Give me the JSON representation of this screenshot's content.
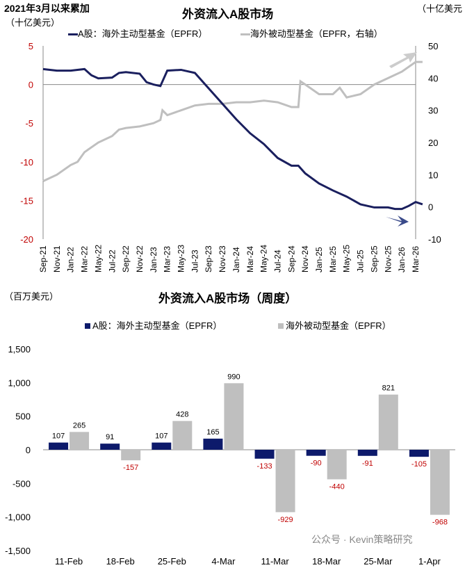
{
  "chart_data": [
    {
      "type": "line",
      "title": "外资流入A股市场",
      "note": "2021年3月以来累加",
      "ylabel": "（十亿美元）",
      "y2label": "（十亿美元",
      "ylim": [
        -20,
        5
      ],
      "y2lim": [
        -10,
        50
      ],
      "yticks": [
        "5",
        "0",
        "-5",
        "-10",
        "-15",
        "-20"
      ],
      "y2ticks": [
        "50",
        "40",
        "30",
        "20",
        "10",
        "0",
        "-10"
      ],
      "xticks": [
        "Sep-21",
        "Nov-21",
        "Jan-22",
        "Mar-22",
        "May-22",
        "Jul-22",
        "Sep-22",
        "Nov-22",
        "Jan-23",
        "Mar-23",
        "May-23",
        "Jul-23",
        "Sep-23",
        "Nov-23",
        "Jan-24",
        "Mar-24",
        "May-24",
        "Jul-24",
        "Sep-24",
        "Nov-24",
        "Jan-25",
        "Mar-25",
        "May-25",
        "Jul-25",
        "Sep-25",
        "Nov-25",
        "Jan-26",
        "Mar-26"
      ],
      "series": [
        {
          "name": "A股：海外主动型基金（EPFR）",
          "axis": "left",
          "color": "#1a1f5e",
          "x": [
            0,
            2,
            4,
            6,
            7,
            8,
            10,
            11,
            12,
            14,
            15,
            16,
            17,
            18,
            20,
            22,
            24,
            26,
            28,
            30,
            32,
            34,
            36,
            37,
            38,
            40,
            42,
            44,
            46,
            48,
            50,
            51,
            52,
            53,
            54,
            55
          ],
          "values": [
            2.0,
            1.8,
            1.8,
            2.0,
            1.2,
            0.8,
            0.9,
            1.5,
            1.6,
            1.4,
            0.3,
            0,
            -0.2,
            1.8,
            1.9,
            1.5,
            -0.5,
            -2.5,
            -4.5,
            -6.3,
            -7.7,
            -9.5,
            -10.5,
            -10.5,
            -11.5,
            -12.8,
            -13.7,
            -14.5,
            -15.5,
            -15.9,
            -15.9,
            -16.1,
            -16.1,
            -15.7,
            -15.2,
            -15.5
          ]
        },
        {
          "name": "海外被动型基金（EPFR，右轴）",
          "axis": "right",
          "color": "#bfbfbf",
          "x": [
            0,
            2,
            4,
            5,
            6,
            8,
            10,
            11,
            12,
            14,
            16,
            17,
            17.3,
            18,
            20,
            22,
            24,
            26,
            28,
            30,
            32,
            34,
            36,
            37,
            37.3,
            38,
            40,
            42,
            43,
            44,
            46,
            48,
            50,
            52,
            54,
            55
          ],
          "values": [
            8,
            10,
            13,
            14,
            17,
            20,
            22,
            24,
            24.5,
            25,
            26,
            27,
            30,
            28.5,
            30,
            31.5,
            32,
            32,
            32.5,
            32.5,
            33,
            32.5,
            31,
            31,
            39,
            38,
            35,
            35,
            37,
            34,
            35,
            38,
            40,
            42,
            45,
            45
          ]
        }
      ]
    },
    {
      "type": "bar",
      "title": "外资流入A股市场（周度）",
      "ylabel": "（百万美元）",
      "ylim": [
        -1500,
        1500
      ],
      "yticks": [
        "1,500",
        "1,000",
        "500",
        "0",
        "-500",
        "-1,000",
        "-1,500"
      ],
      "categories": [
        "11-Feb",
        "18-Feb",
        "25-Feb",
        "4-Mar",
        "11-Mar",
        "18-Mar",
        "25-Mar",
        "1-Apr"
      ],
      "series": [
        {
          "name": "A股：海外主动型基金（EPFR）",
          "color": "#0d1a6b",
          "values": [
            107,
            91,
            107,
            165,
            -133,
            -90,
            -91,
            -105
          ]
        },
        {
          "name": "海外被动型基金（EPFR）",
          "color": "#bfbfbf",
          "values": [
            265,
            -157,
            428,
            990,
            -929,
            -440,
            821,
            -968
          ]
        }
      ],
      "negative_label_color": "#c00000"
    }
  ],
  "watermark": "公众号 · Kevin策略研究"
}
